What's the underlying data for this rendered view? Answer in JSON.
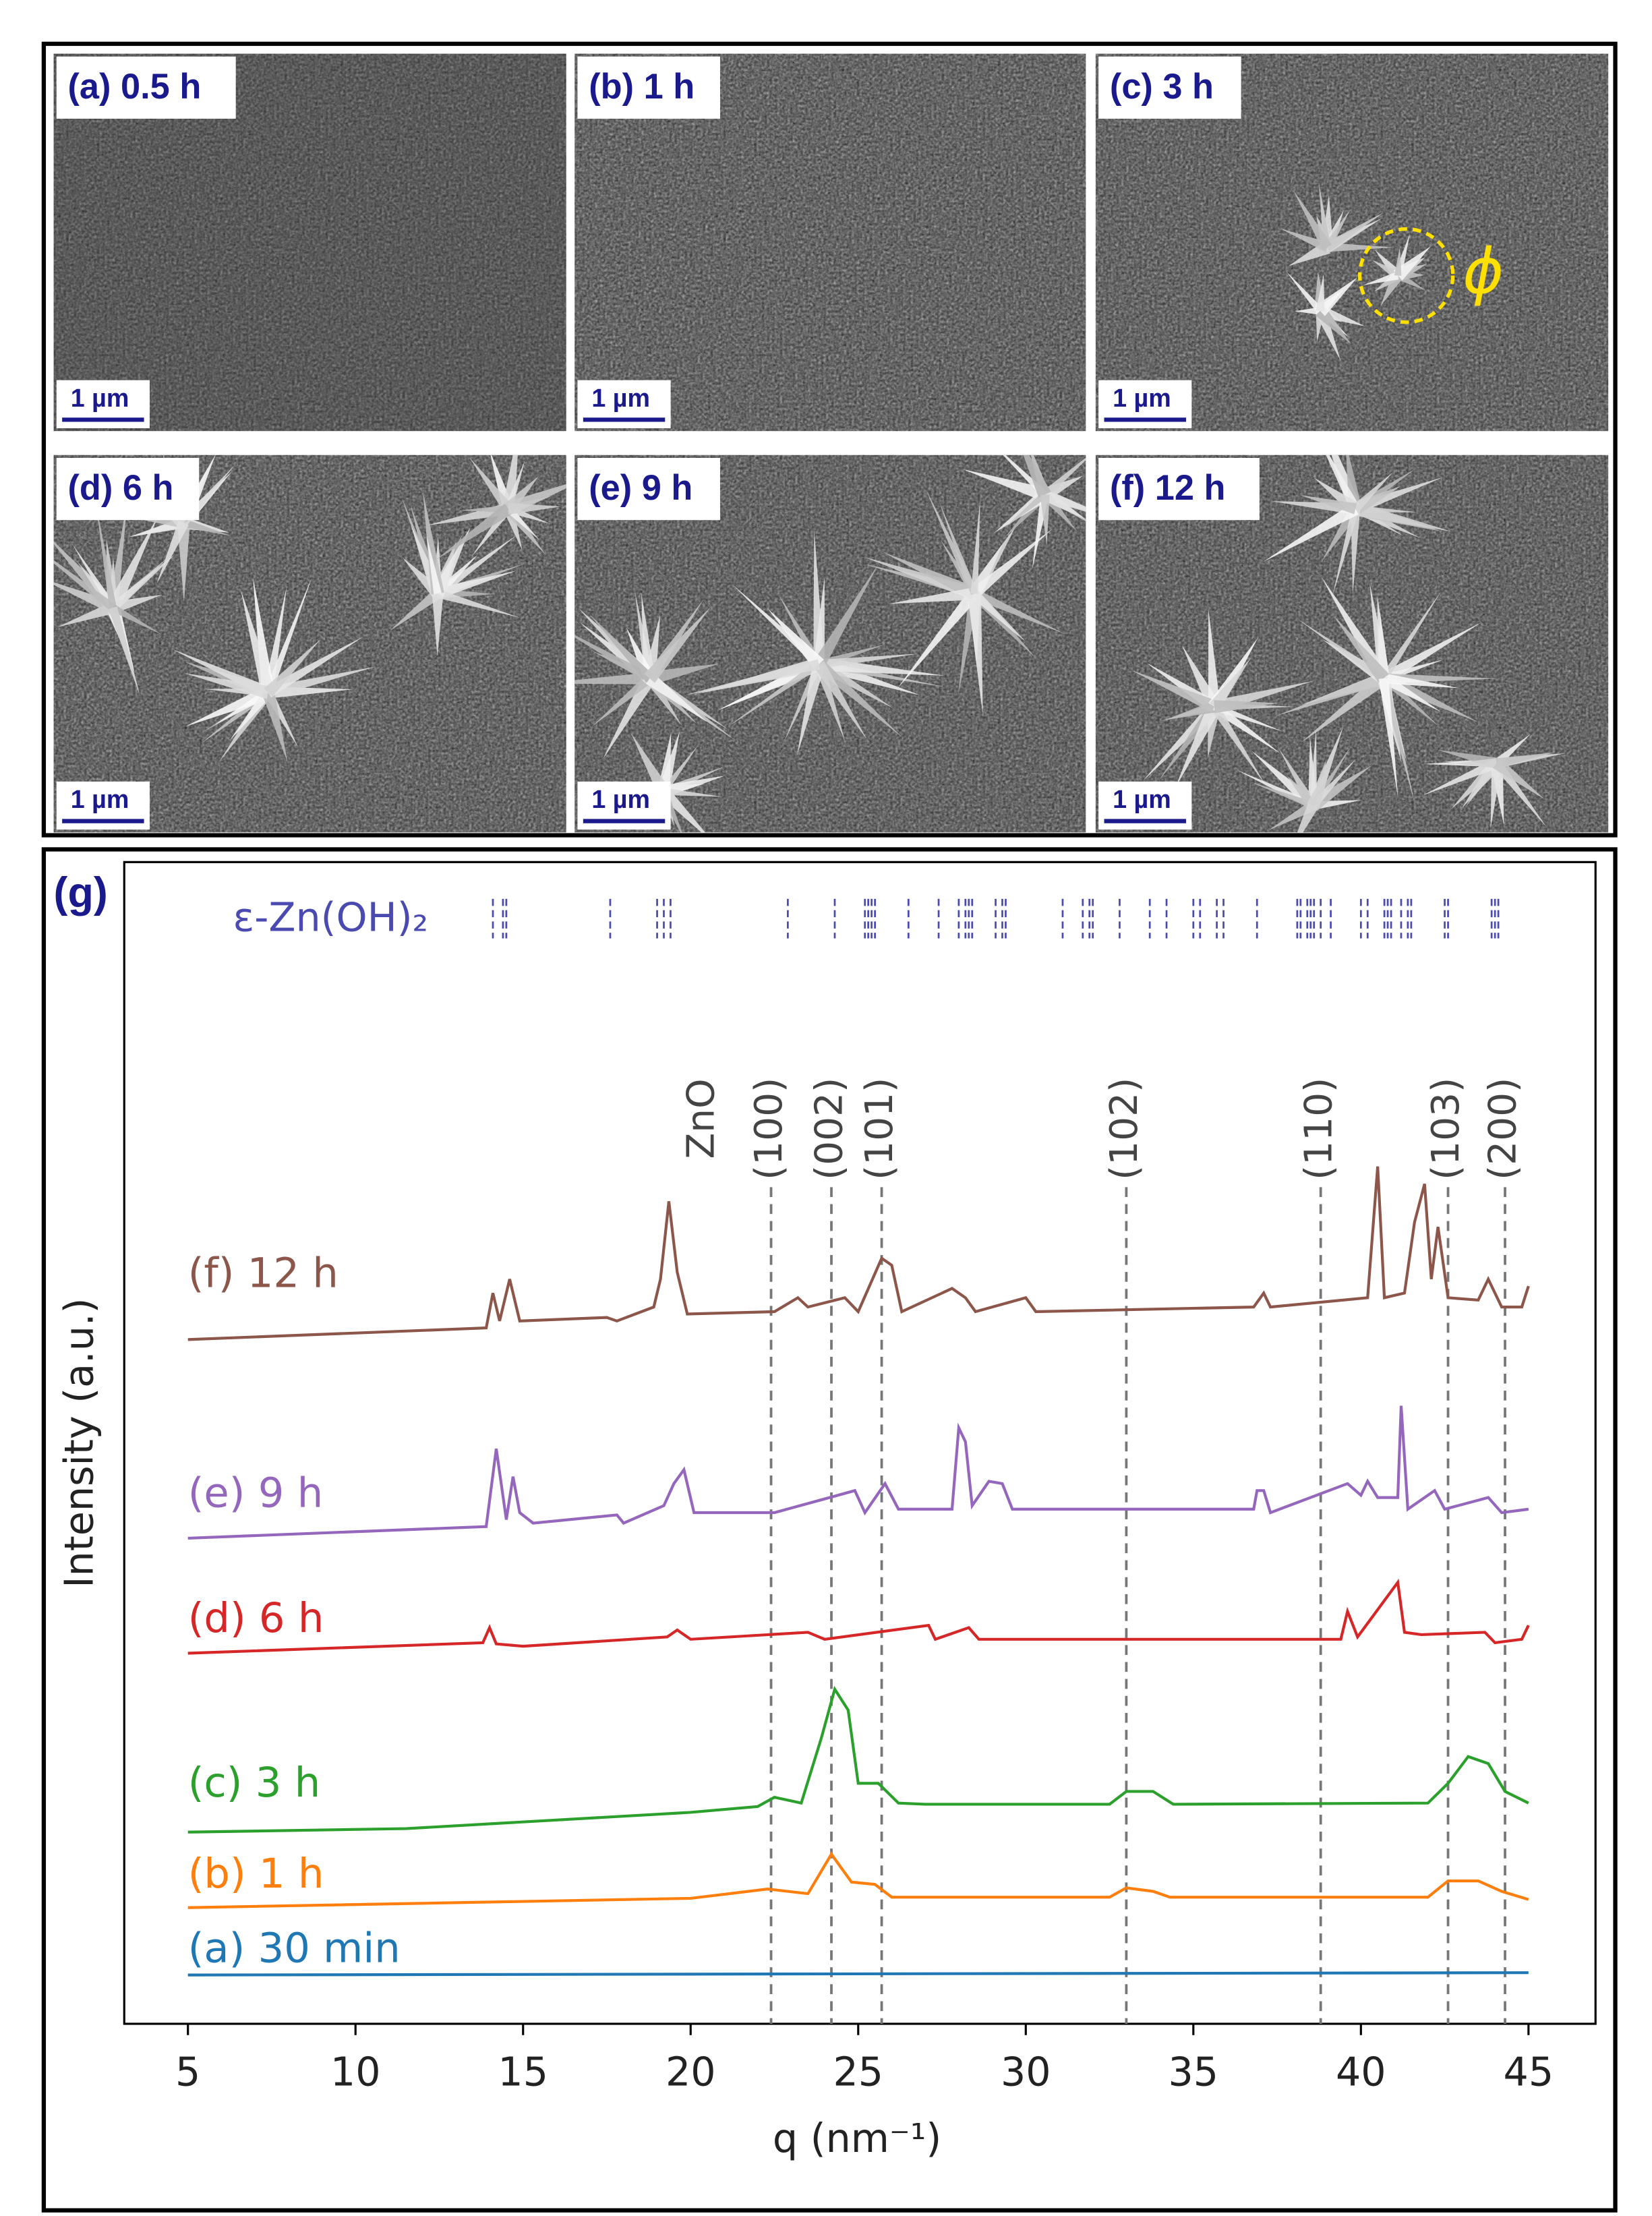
{
  "panels": [
    {
      "label": "(a) 0.5 h",
      "scale_bar": "1 µm"
    },
    {
      "label": "(b) 1 h",
      "scale_bar": "1 µm"
    },
    {
      "label": "(c) 3 h",
      "scale_bar": "1 µm",
      "annotation": "ϕ"
    },
    {
      "label": "(d) 6 h",
      "scale_bar": "1 µm"
    },
    {
      "label": "(e) 9 h",
      "scale_bar": "1 µm"
    },
    {
      "label": "(f) 12 h",
      "scale_bar": "1 µm"
    }
  ],
  "chart_data": {
    "type": "line",
    "panel_label": "(g)",
    "xlabel": "q (nm⁻¹)",
    "ylabel": "Intensity (a.u.)",
    "xlim": [
      3.1,
      47
    ],
    "xticks": [
      5,
      10,
      15,
      20,
      25,
      30,
      35,
      40,
      45
    ],
    "ylim": [
      0,
      100
    ],
    "reference": {
      "label": "ε-Zn(OH)₂",
      "color": "#4a4ab0",
      "positions": [
        14.1,
        14.4,
        14.5,
        17.6,
        19.0,
        19.2,
        19.4,
        22.9,
        24.3,
        25.2,
        25.3,
        25.4,
        25.5,
        26.5,
        27.4,
        28.0,
        28.2,
        28.3,
        28.4,
        29.1,
        29.3,
        29.4,
        31.1,
        31.7,
        31.9,
        32.0,
        32.8,
        33.7,
        34.2,
        35.0,
        35.2,
        35.7,
        35.9,
        36.9,
        38.1,
        38.2,
        38.4,
        38.5,
        38.6,
        38.8,
        39.1,
        40.0,
        40.2,
        40.7,
        40.8,
        40.9,
        41.2,
        41.4,
        41.5,
        42.5,
        42.6,
        43.9,
        44.0,
        44.1
      ]
    },
    "zno": {
      "label": "ZnO",
      "positions": [
        22.4,
        24.2,
        25.7,
        33.0,
        38.8,
        42.6,
        44.3
      ],
      "labels": [
        "(100)",
        "(002)",
        "(101)",
        "(102)",
        "(110)",
        "(103)",
        "(200)"
      ]
    },
    "series": [
      {
        "name": "(f) 12 h",
        "color": "#8c564b",
        "x": [
          5,
          13.9,
          14.1,
          14.3,
          14.6,
          14.9,
          17.5,
          17.8,
          18.9,
          19.1,
          19.35,
          19.6,
          19.9,
          22.5,
          23.2,
          23.5,
          24.6,
          25,
          25.7,
          26,
          26.3,
          27.8,
          28.2,
          28.5,
          30,
          30.3,
          36.8,
          37.1,
          37.3,
          40.2,
          40.5,
          40.7,
          41.3,
          41.6,
          41.9,
          42.1,
          42.3,
          42.6,
          43.5,
          43.8,
          44.2,
          44.8,
          45
        ],
        "values": [
          58.9,
          59.9,
          62.9,
          60.5,
          64.1,
          60.5,
          60.8,
          60.5,
          61.7,
          64.1,
          70.8,
          64.7,
          61.1,
          61.3,
          62.5,
          61.7,
          62.5,
          61.3,
          65.9,
          65.3,
          61.3,
          63.3,
          62.5,
          61.3,
          62.5,
          61.3,
          61.7,
          62.9,
          61.7,
          62.5,
          73.8,
          62.5,
          62.9,
          69.0,
          72.3,
          64.1,
          68.6,
          62.5,
          62.3,
          64.1,
          61.7,
          61.7,
          63.5
        ]
      },
      {
        "name": "(e) 9 h",
        "color": "#9467bd",
        "x": [
          5,
          13.9,
          14.2,
          14.5,
          14.7,
          14.9,
          15.3,
          17.8,
          18,
          19.2,
          19.5,
          19.8,
          20.1,
          22.5,
          24.4,
          24.9,
          25.2,
          25.8,
          26.2,
          27.8,
          28,
          28.2,
          28.4,
          28.9,
          29.3,
          29.6,
          36.8,
          36.9,
          37.1,
          37.3,
          39.6,
          40,
          40.2,
          40.5,
          41.1,
          41.2,
          41.4,
          42.2,
          42.5,
          43.8,
          44.2,
          45
        ],
        "values": [
          41.8,
          42.8,
          49.5,
          43.4,
          47.1,
          44.0,
          43.1,
          43.8,
          43.1,
          44.6,
          46.5,
          47.7,
          44.0,
          44.0,
          45.5,
          45.9,
          44.0,
          46.5,
          44.3,
          44.3,
          51.3,
          50.1,
          44.6,
          46.7,
          46.5,
          44.3,
          44.3,
          45.9,
          45.9,
          44.0,
          46.5,
          45.5,
          46.7,
          45.3,
          45.3,
          53.2,
          44.3,
          45.9,
          44.3,
          45.3,
          44.0,
          44.3
        ]
      },
      {
        "name": "(d) 6 h",
        "color": "#d62728",
        "x": [
          5,
          13.8,
          14,
          14.2,
          15,
          19.3,
          19.6,
          20,
          23.5,
          24,
          27.1,
          27.3,
          28.3,
          28.6,
          39.4,
          39.6,
          39.9,
          41.1,
          41.3,
          41.8,
          43.7,
          44,
          44.8,
          45
        ],
        "values": [
          31.9,
          32.8,
          34.1,
          32.7,
          32.5,
          33.3,
          33.9,
          33.1,
          33.7,
          33.1,
          34.3,
          33.1,
          34.1,
          33.1,
          33.1,
          35.5,
          33.3,
          38.0,
          33.7,
          33.5,
          33.7,
          32.8,
          33.1,
          34.3
        ]
      },
      {
        "name": "(c) 3 h",
        "color": "#2ca02c",
        "x": [
          5,
          11.5,
          20,
          22,
          22.5,
          23.3,
          23.9,
          24.3,
          24.7,
          25,
          25.6,
          26.2,
          27,
          32.5,
          33,
          33.8,
          34.4,
          42,
          42.6,
          43.2,
          43.8,
          44.3,
          45
        ],
        "values": [
          16.5,
          16.8,
          18.2,
          18.7,
          19.5,
          19.0,
          24.6,
          28.8,
          27.0,
          20.7,
          20.7,
          19.0,
          18.9,
          18.9,
          20.0,
          20.0,
          18.9,
          19.0,
          20.7,
          23.0,
          22.4,
          20.0,
          19.0
        ]
      },
      {
        "name": "(b) 1 h",
        "color": "#ff7f0e",
        "x": [
          5,
          20,
          22.3,
          23.5,
          24.2,
          24.8,
          25.5,
          26,
          30,
          32.5,
          33,
          33.8,
          34.3,
          42,
          42.6,
          43.5,
          44.2,
          45
        ],
        "values": [
          10.0,
          10.8,
          11.6,
          11.2,
          14.6,
          12.2,
          12.0,
          10.9,
          10.9,
          10.9,
          11.7,
          11.4,
          10.9,
          10.9,
          12.3,
          12.3,
          11.4,
          10.7
        ]
      },
      {
        "name": "(a) 30 min",
        "color": "#1f77b4",
        "x": [
          5,
          45
        ],
        "values": [
          4.2,
          4.4
        ]
      }
    ]
  }
}
